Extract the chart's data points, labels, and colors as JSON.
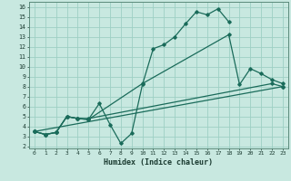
{
  "xlabel": "Humidex (Indice chaleur)",
  "bg_color": "#c8e8e0",
  "grid_color": "#9ecfc4",
  "line_color": "#1a6b5a",
  "xlim": [
    -0.5,
    23.5
  ],
  "ylim": [
    1.8,
    16.5
  ],
  "xticks": [
    0,
    1,
    2,
    3,
    4,
    5,
    6,
    7,
    8,
    9,
    10,
    11,
    12,
    13,
    14,
    15,
    16,
    17,
    18,
    19,
    20,
    21,
    22,
    23
  ],
  "yticks": [
    2,
    3,
    4,
    5,
    6,
    7,
    8,
    9,
    10,
    11,
    12,
    13,
    14,
    15,
    16
  ],
  "line1_x": [
    0,
    1,
    2,
    3,
    4,
    5,
    6,
    7,
    8,
    9,
    10,
    11,
    12,
    13,
    14,
    15,
    16,
    17,
    18
  ],
  "line1_y": [
    3.5,
    3.2,
    3.4,
    5.0,
    4.8,
    4.7,
    6.3,
    4.2,
    2.3,
    3.3,
    8.2,
    11.8,
    12.2,
    13.0,
    14.3,
    15.5,
    15.2,
    15.8,
    14.5
  ],
  "line2_x": [
    0,
    1,
    2,
    3,
    4,
    5,
    10,
    18,
    19,
    20,
    21,
    22,
    23
  ],
  "line2_y": [
    3.5,
    3.2,
    3.4,
    5.0,
    4.8,
    4.7,
    8.3,
    13.2,
    8.2,
    9.8,
    9.3,
    8.7,
    8.3
  ],
  "line3_x": [
    0,
    1,
    2,
    3,
    4,
    5,
    22,
    23
  ],
  "line3_y": [
    3.5,
    3.2,
    3.4,
    5.0,
    4.8,
    4.8,
    8.3,
    8.0
  ],
  "line4_x": [
    0,
    23
  ],
  "line4_y": [
    3.5,
    8.0
  ]
}
